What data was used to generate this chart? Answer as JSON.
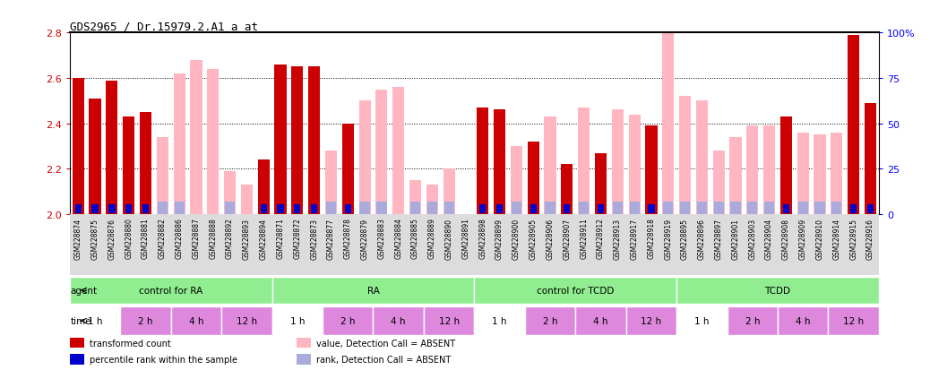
{
  "title": "GDS2965 / Dr.15979.2.A1_a_at",
  "samples": [
    "GSM228874",
    "GSM228875",
    "GSM228876",
    "GSM228880",
    "GSM228881",
    "GSM228882",
    "GSM228886",
    "GSM228887",
    "GSM228888",
    "GSM228892",
    "GSM228893",
    "GSM228894",
    "GSM228871",
    "GSM228872",
    "GSM228873",
    "GSM228877",
    "GSM228878",
    "GSM228879",
    "GSM228883",
    "GSM228884",
    "GSM228885",
    "GSM228889",
    "GSM228890",
    "GSM228891",
    "GSM228898",
    "GSM228899",
    "GSM228900",
    "GSM228905",
    "GSM228906",
    "GSM228907",
    "GSM228911",
    "GSM228912",
    "GSM228913",
    "GSM228917",
    "GSM228918",
    "GSM228919",
    "GSM228895",
    "GSM228896",
    "GSM228897",
    "GSM228901",
    "GSM228903",
    "GSM228904",
    "GSM228908",
    "GSM228909",
    "GSM228910",
    "GSM228914",
    "GSM228915",
    "GSM228916"
  ],
  "red_values": [
    2.6,
    2.51,
    2.59,
    2.43,
    2.45,
    null,
    null,
    null,
    null,
    null,
    null,
    2.24,
    2.66,
    2.65,
    2.65,
    null,
    2.4,
    null,
    null,
    null,
    null,
    null,
    null,
    null,
    2.47,
    2.46,
    null,
    2.32,
    null,
    2.22,
    null,
    2.27,
    null,
    null,
    2.39,
    null,
    null,
    null,
    null,
    null,
    null,
    null,
    2.43,
    null,
    null,
    null,
    2.79,
    2.49
  ],
  "pink_values": [
    null,
    null,
    null,
    null,
    null,
    2.34,
    2.62,
    2.68,
    2.64,
    2.19,
    2.13,
    null,
    null,
    null,
    null,
    2.28,
    null,
    2.5,
    2.55,
    2.56,
    2.15,
    2.13,
    2.2,
    null,
    null,
    null,
    2.3,
    null,
    2.43,
    null,
    2.47,
    null,
    2.46,
    2.44,
    null,
    2.86,
    2.52,
    2.5,
    2.28,
    2.34,
    2.39,
    2.39,
    null,
    2.36,
    2.35,
    2.36,
    null,
    null
  ],
  "blue_present": [
    1,
    1,
    1,
    1,
    1,
    0,
    0,
    0,
    0,
    0,
    0,
    1,
    1,
    1,
    1,
    0,
    1,
    0,
    0,
    0,
    0,
    0,
    0,
    0,
    1,
    1,
    0,
    1,
    0,
    1,
    0,
    1,
    0,
    0,
    1,
    0,
    0,
    0,
    0,
    0,
    0,
    0,
    1,
    0,
    0,
    0,
    1,
    1
  ],
  "lightblue_present": [
    0,
    0,
    0,
    0,
    0,
    1,
    1,
    0,
    0,
    1,
    0,
    0,
    0,
    0,
    0,
    1,
    0,
    1,
    1,
    0,
    1,
    1,
    1,
    0,
    0,
    0,
    1,
    0,
    1,
    0,
    1,
    0,
    1,
    1,
    0,
    1,
    1,
    1,
    1,
    1,
    1,
    1,
    0,
    1,
    1,
    1,
    0,
    0
  ],
  "ylim_left": [
    2.0,
    2.8
  ],
  "ylim_right": [
    0,
    100
  ],
  "yticks_left": [
    2.0,
    2.2,
    2.4,
    2.6,
    2.8
  ],
  "yticks_right": [
    0,
    25,
    50,
    75,
    100
  ],
  "ytick_right_labels": [
    "0",
    "25",
    "50",
    "75",
    "100%"
  ],
  "dotted_lines": [
    2.2,
    2.4,
    2.6
  ],
  "agents": [
    {
      "label": "control for RA",
      "start": 0,
      "end": 12
    },
    {
      "label": "RA",
      "start": 12,
      "end": 24
    },
    {
      "label": "control for TCDD",
      "start": 24,
      "end": 36
    },
    {
      "label": "TCDD",
      "start": 36,
      "end": 48
    }
  ],
  "times": [
    {
      "label": "1 h",
      "start": 0,
      "end": 3,
      "purple": false
    },
    {
      "label": "2 h",
      "start": 3,
      "end": 6,
      "purple": true
    },
    {
      "label": "4 h",
      "start": 6,
      "end": 9,
      "purple": true
    },
    {
      "label": "12 h",
      "start": 9,
      "end": 12,
      "purple": true
    },
    {
      "label": "1 h",
      "start": 12,
      "end": 15,
      "purple": false
    },
    {
      "label": "2 h",
      "start": 15,
      "end": 18,
      "purple": true
    },
    {
      "label": "4 h",
      "start": 18,
      "end": 21,
      "purple": true
    },
    {
      "label": "12 h",
      "start": 21,
      "end": 24,
      "purple": true
    },
    {
      "label": "1 h",
      "start": 24,
      "end": 27,
      "purple": false
    },
    {
      "label": "2 h",
      "start": 27,
      "end": 30,
      "purple": true
    },
    {
      "label": "4 h",
      "start": 30,
      "end": 33,
      "purple": true
    },
    {
      "label": "12 h",
      "start": 33,
      "end": 36,
      "purple": true
    },
    {
      "label": "1 h",
      "start": 36,
      "end": 39,
      "purple": false
    },
    {
      "label": "2 h",
      "start": 39,
      "end": 42,
      "purple": true
    },
    {
      "label": "4 h",
      "start": 42,
      "end": 45,
      "purple": true
    },
    {
      "label": "12 h",
      "start": 45,
      "end": 48,
      "purple": true
    }
  ],
  "bar_width": 0.7,
  "baseline": 2.0,
  "red_color": "#CC0000",
  "pink_color": "#FFB6C1",
  "blue_color": "#0000CC",
  "lightblue_color": "#AAAADD",
  "agent_color": "#90EE90",
  "time_white": "#FFFFFF",
  "time_purple": "#DD88DD",
  "xtick_bg": "#DCDCDC",
  "plot_bg": "#FFFFFF"
}
